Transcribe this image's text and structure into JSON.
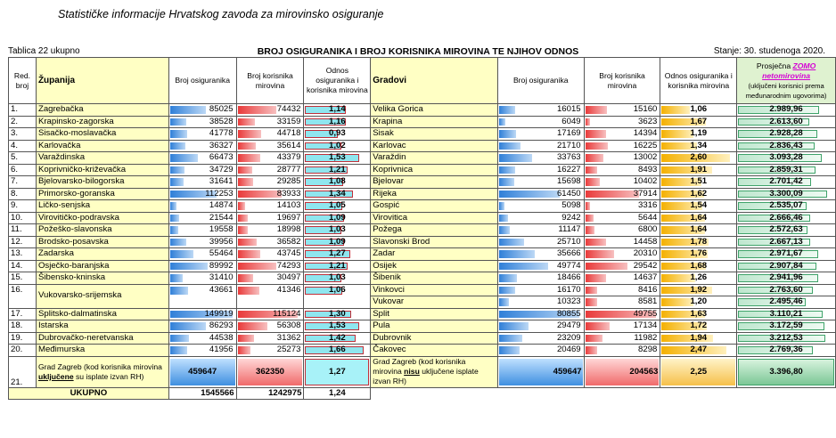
{
  "header_title": "Statističke informacije Hrvatskog zavoda za mirovinsko osiguranje",
  "table_label": "Tablica 22 ukupno",
  "table_title": "BROJ OSIGURANIKA I BROJ KORISNIKA MIROVINA TE NJIHOV ODNOS",
  "status_date": "Stanje: 30. studenoga 2020.",
  "columns": {
    "num": "Red. broj",
    "county": "Županija",
    "insured": "Broj osiguranika",
    "pensioners": "Broj korisnika mirovina",
    "ratio": "Odnos osiguranika i korisnika mirovina",
    "city": "Gradovi",
    "c_insured": "Broj osiguranika",
    "c_pensioners": "Broj korisnika mirovina",
    "c_ratio": "Odnos osiguranika i korisnika mirovina",
    "avg_pre": "Prosječna",
    "avg_highlight": "ZOMO netomirovina",
    "avg_note": "(uključeni korisnici prema međunarodnim ugovorima)"
  },
  "colors": {
    "insured_bar": "#2f7fd8",
    "pensioner_bar": "#e93a3a",
    "ratio_bar": "#8fe6ef",
    "city_ratio_bar": "#f4b000",
    "avg_bar": "#3fa36a",
    "highlight_yellow": "#ffffc4",
    "highlight_green": "#dff2d0"
  },
  "rows": [
    {
      "n": "1.",
      "county": "Zagrebačka",
      "ins": "85025",
      "pen": "74432",
      "ratio": "1,14",
      "city": "Velika Gorica",
      "cins": "16015",
      "cpen": "15160",
      "cratio": "1,06",
      "avg": "2.989,96"
    },
    {
      "n": "2.",
      "county": "Krapinsko-zagorska",
      "ins": "38528",
      "pen": "33159",
      "ratio": "1,16",
      "city": "Krapina",
      "cins": "6049",
      "cpen": "3623",
      "cratio": "1,67",
      "avg": "2.613,60"
    },
    {
      "n": "3.",
      "county": "Sisačko-moslavačka",
      "ins": "41778",
      "pen": "44718",
      "ratio": "0,93",
      "city": "Sisak",
      "cins": "17169",
      "cpen": "14394",
      "cratio": "1,19",
      "avg": "2.928,28"
    },
    {
      "n": "4.",
      "county": "Karlovačka",
      "ins": "36327",
      "pen": "35614",
      "ratio": "1,02",
      "city": "Karlovac",
      "cins": "21710",
      "cpen": "16225",
      "cratio": "1,34",
      "avg": "2.836,43"
    },
    {
      "n": "5.",
      "county": "Varaždinska",
      "ins": "66473",
      "pen": "43379",
      "ratio": "1,53",
      "city": "Varaždin",
      "cins": "33763",
      "cpen": "13002",
      "cratio": "2,60",
      "avg": "3.093,28"
    },
    {
      "n": "6.",
      "county": "Koprivničko-križevačka",
      "ins": "34729",
      "pen": "28777",
      "ratio": "1,21",
      "city": "Koprivnica",
      "cins": "16227",
      "cpen": "8493",
      "cratio": "1,91",
      "avg": "2.859,31"
    },
    {
      "n": "7.",
      "county": "Bjelovarsko-bilogorska",
      "ins": "31641",
      "pen": "29285",
      "ratio": "1,08",
      "city": "Bjelovar",
      "cins": "15698",
      "cpen": "10402",
      "cratio": "1,51",
      "avg": "2.701,42"
    },
    {
      "n": "8.",
      "county": "Primorsko-goranska",
      "ins": "112253",
      "pen": "83933",
      "ratio": "1,34",
      "city": "Rijeka",
      "cins": "61450",
      "cpen": "37914",
      "cratio": "1,62",
      "avg": "3.300,09"
    },
    {
      "n": "9.",
      "county": "Ličko-senjska",
      "ins": "14874",
      "pen": "14103",
      "ratio": "1,05",
      "city": "Gospić",
      "cins": "5098",
      "cpen": "3316",
      "cratio": "1,54",
      "avg": "2.535,07"
    },
    {
      "n": "10.",
      "county": "Virovitičko-podravska",
      "ins": "21544",
      "pen": "19697",
      "ratio": "1,09",
      "city": "Virovitica",
      "cins": "9242",
      "cpen": "5644",
      "cratio": "1,64",
      "avg": "2.666,46"
    },
    {
      "n": "11.",
      "county": "Požeško-slavonska",
      "ins": "19558",
      "pen": "18998",
      "ratio": "1,03",
      "city": "Požega",
      "cins": "11147",
      "cpen": "6800",
      "cratio": "1,64",
      "avg": "2.572,63"
    },
    {
      "n": "12.",
      "county": "Brodsko-posavska",
      "ins": "39956",
      "pen": "36582",
      "ratio": "1,09",
      "city": "Slavonski Brod",
      "cins": "25710",
      "cpen": "14458",
      "cratio": "1,78",
      "avg": "2.667,13"
    },
    {
      "n": "13.",
      "county": "Zadarska",
      "ins": "55464",
      "pen": "43745",
      "ratio": "1,27",
      "city": "Zadar",
      "cins": "35666",
      "cpen": "20310",
      "cratio": "1,76",
      "avg": "2.971,67"
    },
    {
      "n": "14.",
      "county": "Osječko-baranjska",
      "ins": "89992",
      "pen": "74293",
      "ratio": "1,21",
      "city": "Osijek",
      "cins": "49774",
      "cpen": "29542",
      "cratio": "1,68",
      "avg": "2.907,84"
    },
    {
      "n": "15.",
      "county": "Šibensko-kninska",
      "ins": "31410",
      "pen": "30497",
      "ratio": "1,03",
      "city": "Šibenik",
      "cins": "18466",
      "cpen": "14637",
      "cratio": "1,26",
      "avg": "2.941,96"
    }
  ],
  "row16": {
    "n": "16.",
    "county": "Vukovarsko-srijemska",
    "ins": "43661",
    "pen": "41346",
    "ratio": "1,06",
    "city1": "Vinkovci",
    "cins1": "16170",
    "cpen1": "8416",
    "cratio1": "1,92",
    "avg1": "2.763,60",
    "city2": "Vukovar",
    "cins2": "10323",
    "cpen2": "8581",
    "cratio2": "1,20",
    "avg2": "2.495,46"
  },
  "rows2": [
    {
      "n": "17.",
      "county": "Splitsko-dalmatinska",
      "ins": "149919",
      "pen": "115124",
      "ratio": "1,30",
      "city": "Split",
      "cins": "80855",
      "cpen": "49755",
      "cratio": "1,63",
      "avg": "3.110,21"
    },
    {
      "n": "18.",
      "county": "Istarska",
      "ins": "86293",
      "pen": "56308",
      "ratio": "1,53",
      "city": "Pula",
      "cins": "29479",
      "cpen": "17134",
      "cratio": "1,72",
      "avg": "3.172,59"
    },
    {
      "n": "19.",
      "county": "Dubrovačko-neretvanska",
      "ins": "44538",
      "pen": "31362",
      "ratio": "1,42",
      "city": "Dubrovnik",
      "cins": "23209",
      "cpen": "11982",
      "cratio": "1,94",
      "avg": "3.212,53"
    },
    {
      "n": "20.",
      "county": "Međimurska",
      "ins": "41956",
      "pen": "25273",
      "ratio": "1,66",
      "city": "Čakovec",
      "cins": "20469",
      "cpen": "8298",
      "cratio": "2,47",
      "avg": "2.769,36"
    }
  ],
  "zagreb": {
    "n": "21.",
    "county_pre": "Grad Zagreb (kod korisnika mirovina ",
    "county_u": "uključene",
    "county_post": " su isplate izvan RH)",
    "ins": "459647",
    "pen": "362350",
    "ratio": "1,27",
    "city_pre": "Grad Zagreb (kod korisnika mirovina ",
    "city_u": "nisu",
    "city_post": " uključene isplate izvan RH)",
    "cins": "459647",
    "cpen": "204563",
    "cratio": "2,25",
    "avg": "3.396,80"
  },
  "total": {
    "label": "UKUPNO",
    "ins": "1545566",
    "pen": "1242975",
    "ratio": "1,24"
  }
}
